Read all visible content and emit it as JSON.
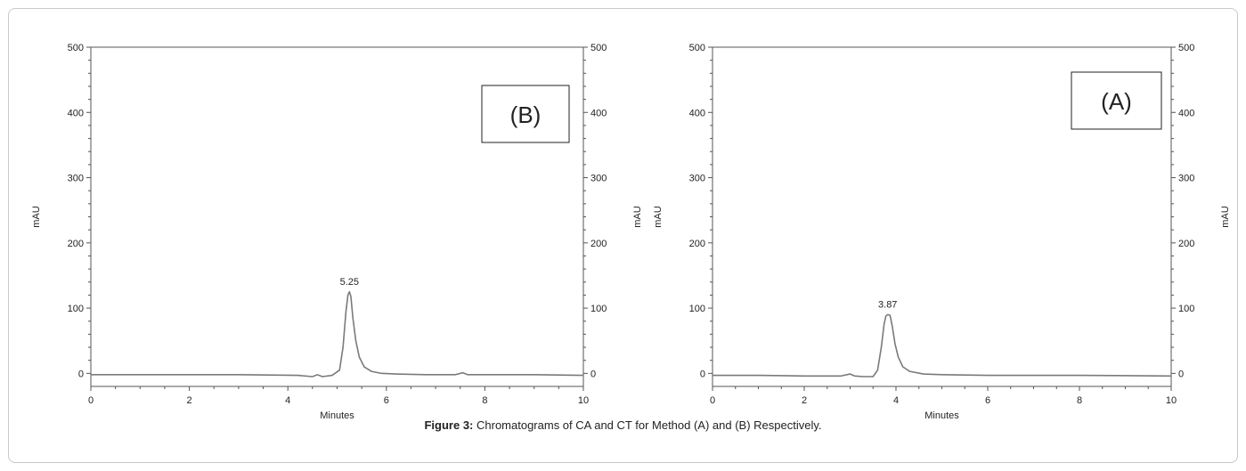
{
  "chart_data": [
    {
      "type": "line",
      "panel_label": "(B)",
      "xlabel": "Minutes",
      "ylabel_left": "mAU",
      "ylabel_right": "mAU",
      "xlim": [
        0,
        10
      ],
      "ylim": [
        -20,
        500
      ],
      "x_ticks": [
        0,
        2,
        4,
        6,
        8,
        10
      ],
      "y_ticks": [
        0,
        100,
        200,
        300,
        400,
        500
      ],
      "peak_label": "5.25",
      "series": [
        {
          "color": "#7a7a7a",
          "x": [
            0,
            1.8,
            2.5,
            3.0,
            4.2,
            4.5,
            4.6,
            4.7,
            4.9,
            5.05,
            5.12,
            5.18,
            5.22,
            5.25,
            5.28,
            5.32,
            5.38,
            5.45,
            5.55,
            5.7,
            5.9,
            6.2,
            6.8,
            7.4,
            7.5,
            7.55,
            7.65,
            8.0,
            9.0,
            10
          ],
          "y": [
            -2,
            -2,
            -2,
            -2,
            -3,
            -5,
            -2,
            -5,
            -3,
            5,
            40,
            95,
            120,
            125,
            118,
            85,
            50,
            25,
            10,
            3,
            0,
            -1,
            -2,
            -2,
            0,
            1,
            -2,
            -2,
            -2,
            -3
          ]
        }
      ]
    },
    {
      "type": "line",
      "panel_label": "(A)",
      "xlabel": "Minutes",
      "ylabel_left": "mAU",
      "ylabel_right": "mAU",
      "xlim": [
        0,
        10
      ],
      "ylim": [
        -20,
        500
      ],
      "x_ticks": [
        0,
        2,
        4,
        6,
        8,
        10
      ],
      "y_ticks": [
        0,
        100,
        200,
        300,
        400,
        500
      ],
      "peak_label": "3.87",
      "series": [
        {
          "color": "#7a7a7a",
          "x": [
            0,
            1.0,
            2.0,
            2.8,
            3.0,
            3.1,
            3.3,
            3.5,
            3.6,
            3.68,
            3.74,
            3.78,
            3.82,
            3.87,
            3.92,
            3.98,
            4.05,
            4.15,
            4.3,
            4.6,
            5.0,
            6.0,
            8.0,
            10
          ],
          "y": [
            -3,
            -3,
            -4,
            -4,
            -1,
            -4,
            -5,
            -5,
            5,
            40,
            75,
            88,
            90,
            89,
            72,
            45,
            25,
            10,
            3,
            -1,
            -2,
            -3,
            -3,
            -4
          ]
        }
      ]
    }
  ],
  "caption": {
    "figure_label": "Figure 3:",
    "text": " Chromatograms of CA and CT for Method (A) and (B) Respectively."
  }
}
